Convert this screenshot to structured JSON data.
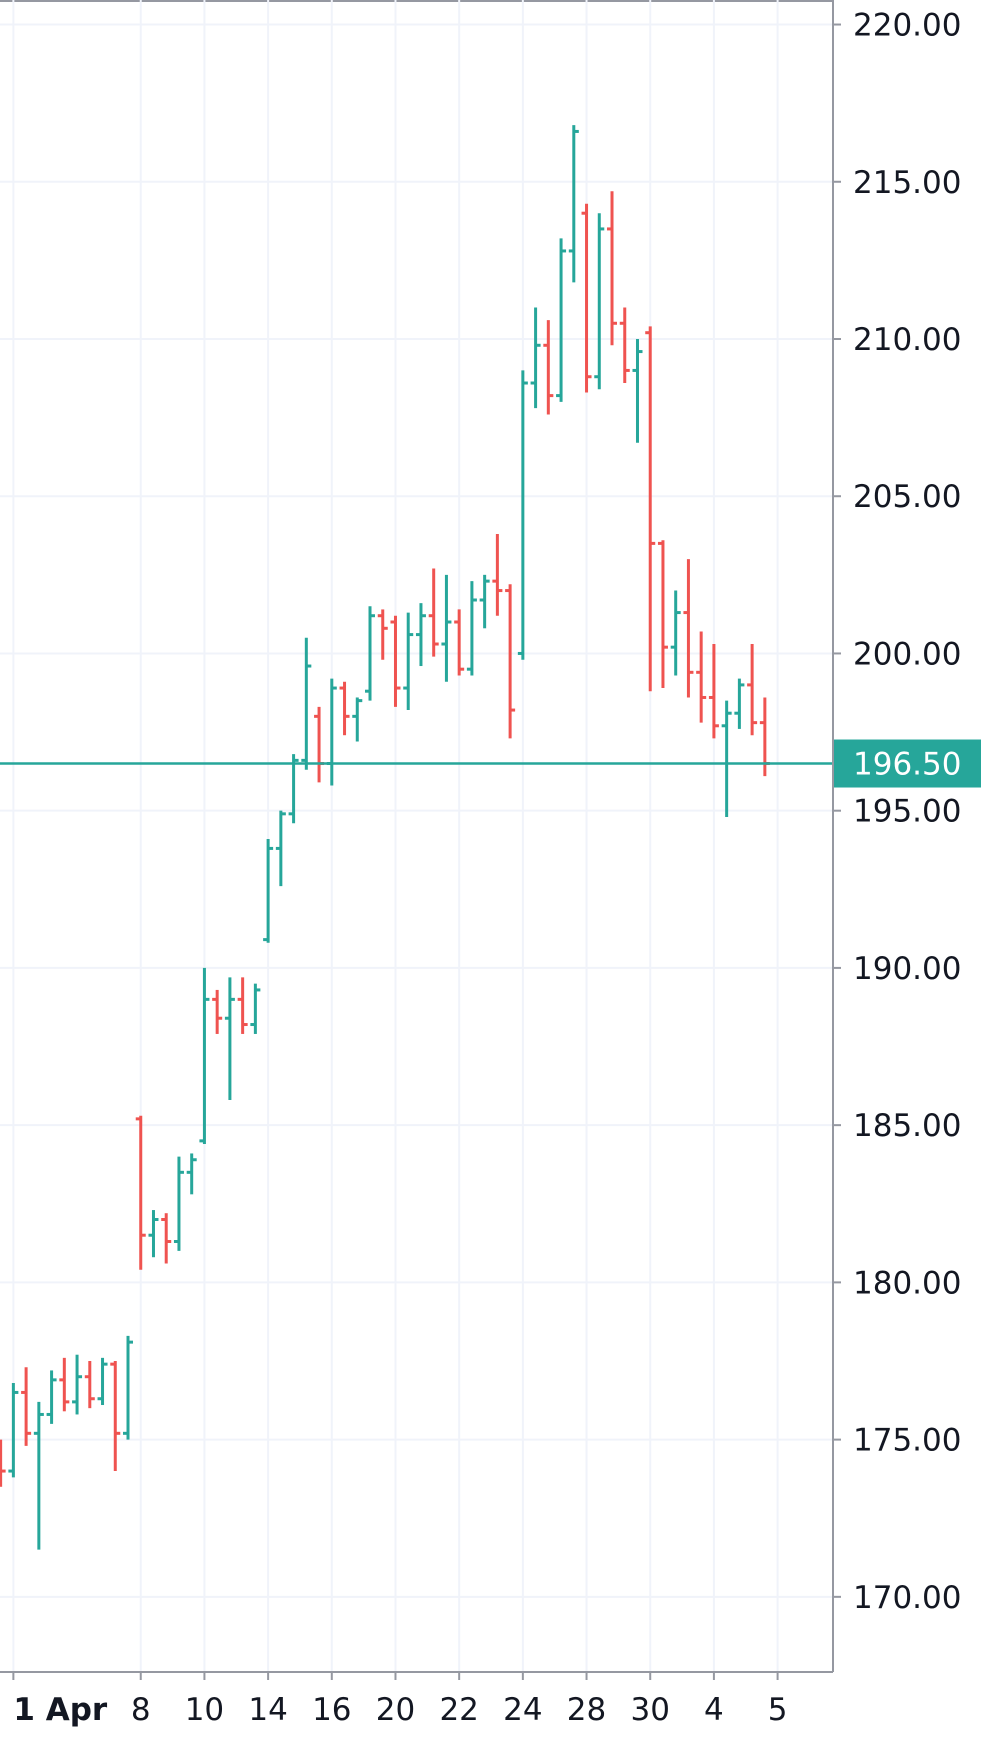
{
  "chart_data": {
    "type": "ohlc",
    "up_color": "#26a69a",
    "down_color": "#ef5350",
    "grid": true,
    "xlim": [
      -0.21,
      12.87
    ],
    "xticks": [
      {
        "value": 0,
        "label": "1 Apr"
      },
      {
        "value": 2,
        "label": "8"
      },
      {
        "value": 3,
        "label": "10"
      },
      {
        "value": 4,
        "label": "14"
      },
      {
        "value": 5,
        "label": "16"
      },
      {
        "value": 6,
        "label": "20"
      },
      {
        "value": 7,
        "label": "22"
      },
      {
        "value": 8,
        "label": "24"
      },
      {
        "value": 9,
        "label": "28"
      },
      {
        "value": 10,
        "label": "30"
      },
      {
        "value": 11,
        "label": "4"
      },
      {
        "value": 12,
        "label": "5"
      }
    ],
    "ylim": [
      167.61,
      220.78
    ],
    "yticks": [
      {
        "value": 170,
        "label": "170.00"
      },
      {
        "value": 175,
        "label": "175.00"
      },
      {
        "value": 180,
        "label": "180.00"
      },
      {
        "value": 185,
        "label": "185.00"
      },
      {
        "value": 190,
        "label": "190.00"
      },
      {
        "value": 195,
        "label": "195.00"
      },
      {
        "value": 200,
        "label": "200.00"
      },
      {
        "value": 205,
        "label": "205.00"
      },
      {
        "value": 210,
        "label": "210.00"
      },
      {
        "value": 215,
        "label": "215.00"
      },
      {
        "value": 220,
        "label": "220.00"
      }
    ],
    "last_price": {
      "value": 196.5,
      "label": "196.50",
      "color": "#26a69a"
    },
    "x": [
      -0.2,
      0.0,
      0.2,
      0.4,
      0.6,
      0.8,
      1.0,
      1.2,
      1.4,
      1.6,
      1.8,
      2.0,
      2.2,
      2.4,
      2.6,
      2.8,
      3.0,
      3.2,
      3.4,
      3.6,
      3.8,
      4.0,
      4.2,
      4.4,
      4.6,
      4.8,
      5.0,
      5.2,
      5.4,
      5.6,
      5.8,
      6.0,
      6.2,
      6.4,
      6.6,
      6.8,
      7.0,
      7.2,
      7.4,
      7.6,
      7.8,
      8.0,
      8.2,
      8.4,
      8.6,
      8.8,
      9.0,
      9.2,
      9.4,
      9.6,
      9.8,
      10.0,
      10.2,
      10.4,
      10.6,
      10.8,
      11.0,
      11.2,
      11.4,
      11.6,
      11.8
    ],
    "open": [
      174.5,
      174.0,
      176.5,
      175.2,
      175.8,
      176.9,
      176.2,
      177.0,
      176.3,
      177.4,
      175.2,
      185.2,
      181.5,
      182.0,
      181.3,
      183.5,
      184.5,
      189.0,
      188.4,
      189.0,
      188.2,
      190.9,
      193.8,
      194.9,
      196.6,
      198.0,
      196.5,
      198.9,
      198.0,
      198.8,
      201.2,
      201.0,
      198.9,
      200.6,
      201.2,
      200.3,
      201.0,
      199.5,
      201.7,
      202.3,
      202.0,
      200.0,
      208.6,
      209.8,
      208.2,
      212.8,
      214.0,
      208.8,
      213.5,
      210.5,
      209.0,
      210.2,
      203.5,
      200.2,
      201.3,
      199.4,
      198.6,
      197.7,
      198.1,
      199.0,
      197.8
    ],
    "high": [
      175.0,
      176.8,
      177.3,
      176.2,
      177.2,
      177.6,
      177.7,
      177.5,
      177.6,
      177.5,
      178.3,
      185.3,
      182.3,
      182.2,
      184.0,
      184.1,
      190.0,
      189.3,
      189.7,
      189.7,
      189.5,
      194.1,
      195.0,
      196.8,
      200.5,
      198.3,
      199.2,
      199.1,
      198.6,
      201.5,
      201.4,
      201.2,
      201.3,
      201.6,
      202.7,
      202.5,
      201.4,
      202.3,
      202.5,
      203.8,
      202.2,
      209.0,
      211.0,
      210.6,
      213.2,
      216.8,
      214.3,
      214.0,
      214.7,
      211.0,
      210.0,
      210.4,
      203.6,
      202.0,
      203.0,
      200.7,
      200.3,
      198.5,
      199.2,
      200.3,
      198.6
    ],
    "low": [
      173.5,
      173.8,
      174.8,
      171.5,
      175.5,
      175.9,
      175.8,
      176.0,
      176.1,
      174.0,
      175.0,
      180.4,
      180.8,
      180.6,
      181.0,
      182.8,
      184.4,
      187.9,
      185.8,
      187.9,
      187.9,
      190.8,
      192.6,
      194.6,
      196.3,
      195.9,
      195.8,
      197.4,
      197.2,
      198.5,
      199.8,
      198.3,
      198.2,
      199.6,
      199.9,
      199.1,
      199.3,
      199.3,
      200.8,
      201.2,
      197.3,
      199.8,
      207.8,
      207.6,
      208.0,
      211.8,
      208.3,
      208.4,
      209.8,
      208.6,
      206.7,
      198.8,
      198.9,
      199.3,
      198.6,
      197.8,
      197.3,
      194.8,
      197.6,
      197.4,
      196.1
    ],
    "close": [
      174.0,
      176.5,
      175.2,
      175.8,
      176.9,
      176.2,
      177.0,
      176.3,
      177.4,
      175.2,
      178.1,
      181.5,
      182.0,
      181.3,
      183.5,
      183.9,
      189.0,
      188.4,
      189.0,
      188.2,
      189.3,
      193.8,
      194.9,
      196.6,
      199.6,
      196.5,
      198.9,
      198.0,
      198.5,
      201.2,
      200.8,
      198.9,
      200.6,
      201.2,
      200.3,
      201.0,
      199.5,
      201.7,
      202.3,
      202.0,
      198.2,
      208.6,
      209.8,
      208.2,
      212.8,
      216.6,
      208.8,
      213.5,
      210.5,
      209.0,
      209.6,
      203.5,
      200.2,
      201.3,
      199.4,
      198.6,
      197.7,
      198.1,
      199.0,
      197.8,
      196.5
    ]
  }
}
